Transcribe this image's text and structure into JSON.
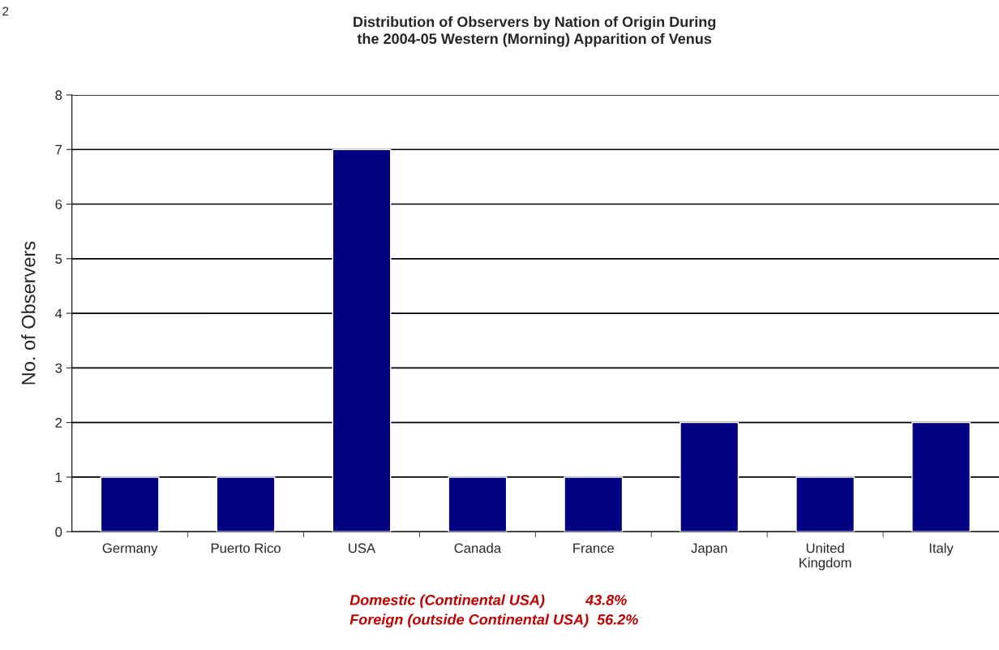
{
  "chart_data": {
    "type": "bar",
    "title": "Distribution of Observers by Nation of Origin During\nthe 2004-05 Western (Morning) Apparition of Venus",
    "ylabel": "No. of Observers",
    "categories": [
      "Germany",
      "Puerto Rico",
      "USA",
      "Canada",
      "France",
      "Japan",
      "United\nKingdom",
      "Italy"
    ],
    "values": [
      1,
      1,
      7,
      1,
      1,
      2,
      1,
      2
    ],
    "color": "#000080",
    "ylim": [
      0,
      8
    ],
    "yticks": [
      0,
      1,
      2,
      3,
      4,
      5,
      6,
      7,
      8
    ],
    "grid": "y",
    "annotations": [
      "2",
      "Domestic (Continental USA)          43.8%",
      "Foreign (outside Continental USA)  56.2%"
    ]
  }
}
